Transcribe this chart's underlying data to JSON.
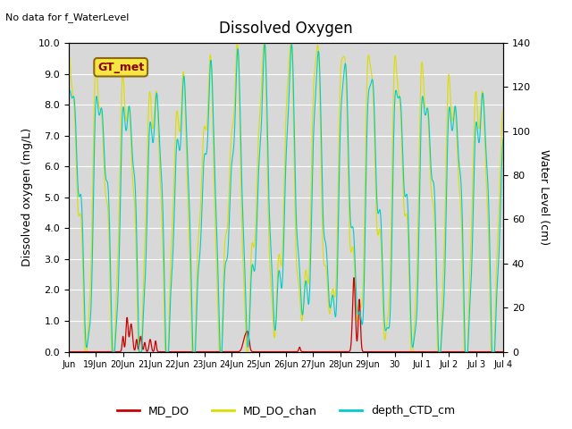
{
  "title": "Dissolved Oxygen",
  "top_left_text": "No data for f_WaterLevel",
  "annotation_text": "GT_met",
  "ylabel_left": "Dissolved oxygen (mg/L)",
  "ylabel_right": "Water Level (cm)",
  "ylim_left": [
    0.0,
    10.0
  ],
  "ylim_right": [
    0,
    140
  ],
  "yticks_left": [
    0.0,
    1.0,
    2.0,
    3.0,
    4.0,
    5.0,
    6.0,
    7.0,
    8.0,
    9.0,
    10.0
  ],
  "yticks_right": [
    0,
    20,
    40,
    60,
    80,
    100,
    120,
    140
  ],
  "xtick_labels": [
    "Jun",
    "19Jun",
    "20Jun",
    "21Jun",
    "22Jun",
    "23Jun",
    "24Jun",
    "25Jun",
    "26Jun",
    "27Jun",
    "28Jun",
    "29Jun",
    "30",
    "Jul 1",
    "Jul 2",
    "Jul 3",
    "Jul 4"
  ],
  "legend_labels": [
    "MD_DO",
    "MD_DO_chan",
    "depth_CTD_cm"
  ],
  "legend_colors": [
    "#cc0000",
    "#dddd00",
    "#00cccc"
  ],
  "line_colors": {
    "MD_DO": "#cc0000",
    "MD_DO_chan": "#dddd00",
    "depth_CTD_cm": "#00cccc"
  },
  "plot_bg_color": "#d8d8d8",
  "grid_color": "#ffffff"
}
